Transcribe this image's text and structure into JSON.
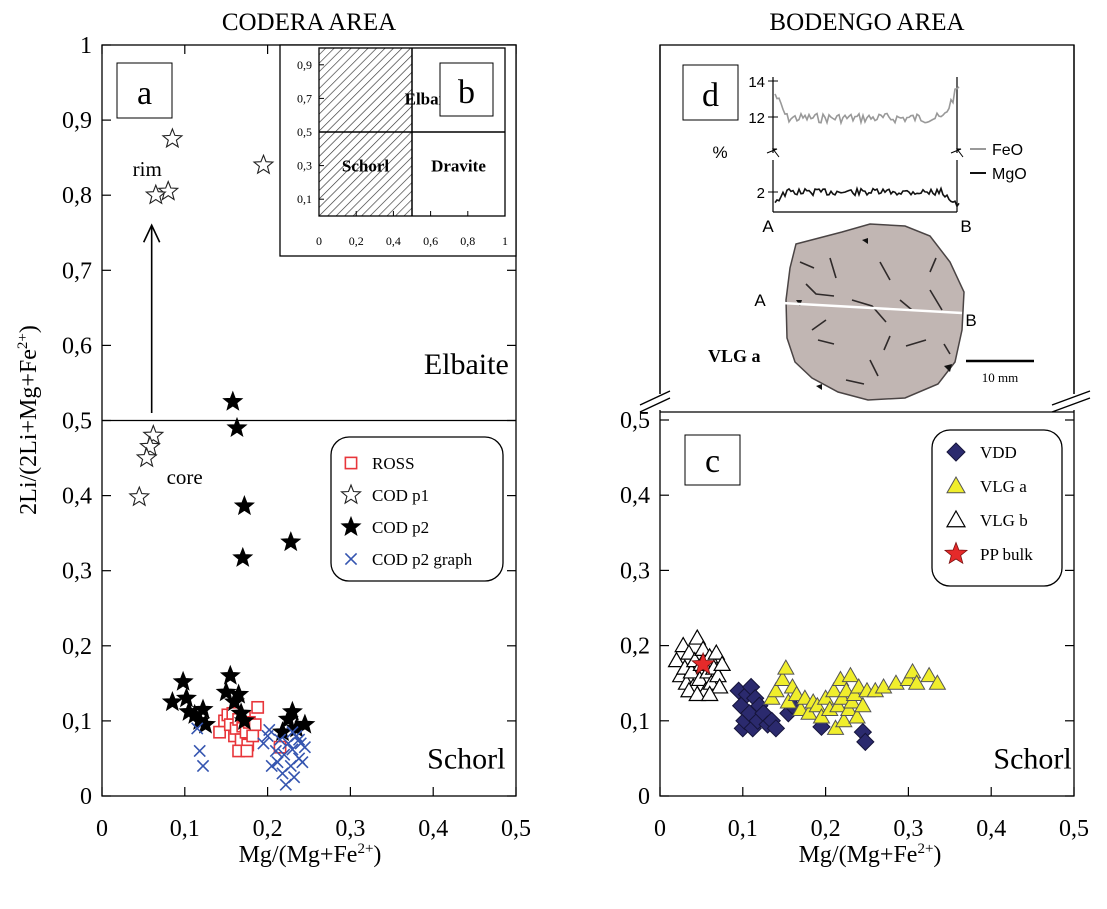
{
  "chart_data": [
    {
      "type": "scatter",
      "title": "CODERA AREA",
      "panel_label": "a",
      "xlabel_parts": [
        "Mg/(Mg+Fe",
        "2+",
        ")"
      ],
      "ylabel_parts": [
        "2Li/(2Li+Mg+Fe",
        "2+",
        ")"
      ],
      "xlim": [
        0,
        0.5
      ],
      "ylim": [
        0,
        1
      ],
      "x_ticks": [
        {
          "value": 0,
          "label": "0"
        },
        {
          "value": 0.1,
          "label": "0,1"
        },
        {
          "value": 0.2,
          "label": "0,2"
        },
        {
          "value": 0.3,
          "label": "0,3"
        },
        {
          "value": 0.4,
          "label": "0,4"
        },
        {
          "value": 0.5,
          "label": "0,5"
        }
      ],
      "y_ticks": [
        {
          "value": 0,
          "label": "0"
        },
        {
          "value": 0.1,
          "label": "0,1"
        },
        {
          "value": 0.2,
          "label": "0,2"
        },
        {
          "value": 0.3,
          "label": "0,3"
        },
        {
          "value": 0.4,
          "label": "0,4"
        },
        {
          "value": 0.5,
          "label": "0,5"
        },
        {
          "value": 0.6,
          "label": "0,6"
        },
        {
          "value": 0.7,
          "label": "0,7"
        },
        {
          "value": 0.8,
          "label": "0,8"
        },
        {
          "value": 0.9,
          "label": "0,9"
        },
        {
          "value": 1,
          "label": "1"
        }
      ],
      "boundary_y": 0.5,
      "region_labels": [
        {
          "text": "Elbaite",
          "x": 0.44,
          "y": 0.575
        },
        {
          "text": "Schorl",
          "x": 0.44,
          "y": 0.05
        }
      ],
      "annotations": [
        {
          "text": "rim",
          "x": 0.037,
          "y": 0.835
        },
        {
          "text": "core",
          "x": 0.078,
          "y": 0.425
        }
      ],
      "arrow": {
        "x": 0.06,
        "y_from": 0.51,
        "y_to": 0.76
      },
      "legend_position": "right, middle",
      "series": [
        {
          "name": "ROSS",
          "marker": "open-square",
          "color": "#e8363b",
          "points": [
            [
              0.142,
              0.085
            ],
            [
              0.148,
              0.1
            ],
            [
              0.152,
              0.108
            ],
            [
              0.155,
              0.095
            ],
            [
              0.158,
              0.11
            ],
            [
              0.16,
              0.08
            ],
            [
              0.162,
              0.09
            ],
            [
              0.165,
              0.102
            ],
            [
              0.168,
              0.075
            ],
            [
              0.17,
              0.093
            ],
            [
              0.172,
              0.105
            ],
            [
              0.174,
              0.085
            ],
            [
              0.176,
              0.068
            ],
            [
              0.178,
              0.098
            ],
            [
              0.182,
              0.08
            ],
            [
              0.185,
              0.095
            ],
            [
              0.188,
              0.118
            ],
            [
              0.165,
              0.06
            ],
            [
              0.175,
              0.06
            ],
            [
              0.215,
              0.065
            ]
          ]
        },
        {
          "name": "COD p1",
          "marker": "open-star",
          "color": "#222222",
          "points": [
            [
              0.085,
              0.875
            ],
            [
              0.195,
              0.84
            ],
            [
              0.08,
              0.805
            ],
            [
              0.065,
              0.8
            ],
            [
              0.062,
              0.48
            ],
            [
              0.058,
              0.465
            ],
            [
              0.054,
              0.45
            ],
            [
              0.045,
              0.398
            ]
          ]
        },
        {
          "name": "COD p2",
          "marker": "filled-star",
          "color": "#000000",
          "points": [
            [
              0.158,
              0.525
            ],
            [
              0.163,
              0.49
            ],
            [
              0.172,
              0.386
            ],
            [
              0.228,
              0.338
            ],
            [
              0.17,
              0.317
            ],
            [
              0.085,
              0.125
            ],
            [
              0.098,
              0.152
            ],
            [
              0.102,
              0.13
            ],
            [
              0.105,
              0.112
            ],
            [
              0.112,
              0.108
            ],
            [
              0.118,
              0.1
            ],
            [
              0.122,
              0.115
            ],
            [
              0.125,
              0.095
            ],
            [
              0.15,
              0.138
            ],
            [
              0.155,
              0.16
            ],
            [
              0.16,
              0.125
            ],
            [
              0.165,
              0.135
            ],
            [
              0.168,
              0.11
            ],
            [
              0.172,
              0.1
            ],
            [
              0.225,
              0.102
            ],
            [
              0.23,
              0.112
            ],
            [
              0.235,
              0.09
            ],
            [
              0.245,
              0.095
            ],
            [
              0.218,
              0.085
            ]
          ]
        },
        {
          "name": "COD p2 graph",
          "marker": "cross",
          "color": "#3555b0",
          "points": [
            [
              0.115,
              0.09
            ],
            [
              0.118,
              0.06
            ],
            [
              0.122,
              0.04
            ],
            [
              0.195,
              0.07
            ],
            [
              0.2,
              0.08
            ],
            [
              0.202,
              0.088
            ],
            [
              0.205,
              0.04
            ],
            [
              0.21,
              0.06
            ],
            [
              0.212,
              0.045
            ],
            [
              0.215,
              0.075
            ],
            [
              0.218,
              0.03
            ],
            [
              0.22,
              0.055
            ],
            [
              0.222,
              0.015
            ],
            [
              0.225,
              0.07
            ],
            [
              0.228,
              0.04
            ],
            [
              0.23,
              0.062
            ],
            [
              0.232,
              0.025
            ],
            [
              0.235,
              0.08
            ],
            [
              0.238,
              0.05
            ],
            [
              0.24,
              0.07
            ],
            [
              0.242,
              0.045
            ],
            [
              0.245,
              0.065
            ],
            [
              0.23,
              0.085
            ],
            [
              0.238,
              0.075
            ]
          ]
        }
      ]
    },
    {
      "type": "scatter",
      "title": "BODENGO AREA",
      "panel_label": "c",
      "xlabel_parts": [
        "Mg/(Mg+Fe",
        "2+",
        ")"
      ],
      "xlim": [
        0,
        0.5
      ],
      "ylim": [
        0,
        0.5
      ],
      "x_ticks": [
        {
          "value": 0,
          "label": "0"
        },
        {
          "value": 0.1,
          "label": "0,1"
        },
        {
          "value": 0.2,
          "label": "0,2"
        },
        {
          "value": 0.3,
          "label": "0,3"
        },
        {
          "value": 0.4,
          "label": "0,4"
        },
        {
          "value": 0.5,
          "label": "0,5"
        }
      ],
      "y_ticks": [
        {
          "value": 0,
          "label": "0"
        },
        {
          "value": 0.1,
          "label": "0,1"
        },
        {
          "value": 0.2,
          "label": "0,2"
        },
        {
          "value": 0.3,
          "label": "0,3"
        },
        {
          "value": 0.4,
          "label": "0,4"
        },
        {
          "value": 0.5,
          "label": "0,5"
        }
      ],
      "axis_break": true,
      "region_labels": [
        {
          "text": "Schorl",
          "x": 0.45,
          "y": 0.05
        }
      ],
      "legend_position": "top-right",
      "series": [
        {
          "name": "VDD",
          "marker": "filled-diamond",
          "color": "#2b2a6e",
          "points": [
            [
              0.095,
              0.14
            ],
            [
              0.098,
              0.12
            ],
            [
              0.1,
              0.09
            ],
            [
              0.102,
              0.1
            ],
            [
              0.105,
              0.135
            ],
            [
              0.108,
              0.11
            ],
            [
              0.11,
              0.145
            ],
            [
              0.112,
              0.09
            ],
            [
              0.115,
              0.13
            ],
            [
              0.118,
              0.1
            ],
            [
              0.12,
              0.12
            ],
            [
              0.125,
              0.11
            ],
            [
              0.13,
              0.095
            ],
            [
              0.135,
              0.1
            ],
            [
              0.14,
              0.09
            ],
            [
              0.155,
              0.11
            ],
            [
              0.16,
              0.12
            ],
            [
              0.195,
              0.092
            ],
            [
              0.245,
              0.085
            ],
            [
              0.248,
              0.072
            ]
          ]
        },
        {
          "name": "VLG a",
          "marker": "filled-triangle",
          "color": "#f0ee2c",
          "points": [
            [
              0.135,
              0.13
            ],
            [
              0.14,
              0.14
            ],
            [
              0.148,
              0.155
            ],
            [
              0.152,
              0.17
            ],
            [
              0.155,
              0.125
            ],
            [
              0.16,
              0.145
            ],
            [
              0.165,
              0.135
            ],
            [
              0.17,
              0.115
            ],
            [
              0.175,
              0.13
            ],
            [
              0.18,
              0.11
            ],
            [
              0.185,
              0.125
            ],
            [
              0.19,
              0.12
            ],
            [
              0.195,
              0.105
            ],
            [
              0.2,
              0.13
            ],
            [
              0.205,
              0.115
            ],
            [
              0.21,
              0.14
            ],
            [
              0.212,
              0.09
            ],
            [
              0.215,
              0.12
            ],
            [
              0.218,
              0.155
            ],
            [
              0.22,
              0.13
            ],
            [
              0.222,
              0.1
            ],
            [
              0.225,
              0.14
            ],
            [
              0.228,
              0.115
            ],
            [
              0.23,
              0.16
            ],
            [
              0.232,
              0.125
            ],
            [
              0.235,
              0.135
            ],
            [
              0.238,
              0.105
            ],
            [
              0.24,
              0.145
            ],
            [
              0.245,
              0.12
            ],
            [
              0.25,
              0.14
            ],
            [
              0.26,
              0.14
            ],
            [
              0.27,
              0.145
            ],
            [
              0.285,
              0.15
            ],
            [
              0.3,
              0.155
            ],
            [
              0.305,
              0.165
            ],
            [
              0.31,
              0.15
            ],
            [
              0.325,
              0.16
            ],
            [
              0.335,
              0.15
            ]
          ]
        },
        {
          "name": "VLG b",
          "marker": "open-triangle",
          "color": "#000000",
          "points": [
            [
              0.02,
              0.18
            ],
            [
              0.025,
              0.16
            ],
            [
              0.028,
              0.2
            ],
            [
              0.03,
              0.17
            ],
            [
              0.032,
              0.15
            ],
            [
              0.035,
              0.19
            ],
            [
              0.038,
              0.165
            ],
            [
              0.04,
              0.145
            ],
            [
              0.042,
              0.18
            ],
            [
              0.045,
              0.21
            ],
            [
              0.048,
              0.155
            ],
            [
              0.05,
              0.175
            ],
            [
              0.052,
              0.195
            ],
            [
              0.055,
              0.14
            ],
            [
              0.058,
              0.165
            ],
            [
              0.06,
              0.185
            ],
            [
              0.062,
              0.15
            ],
            [
              0.065,
              0.17
            ],
            [
              0.068,
              0.19
            ],
            [
              0.07,
              0.16
            ],
            [
              0.072,
              0.145
            ],
            [
              0.075,
              0.175
            ],
            [
              0.035,
              0.14
            ],
            [
              0.045,
              0.135
            ],
            [
              0.06,
              0.135
            ]
          ]
        },
        {
          "name": "PP bulk",
          "marker": "filled-star",
          "color": "#e52a2a",
          "points": [
            [
              0.052,
              0.175
            ]
          ]
        }
      ]
    }
  ],
  "inset_b": {
    "panel_label": "b",
    "xlim": [
      0,
      1
    ],
    "ylim": [
      0,
      1
    ],
    "x_ticks": [
      {
        "value": 0,
        "label": "0"
      },
      {
        "value": 0.2,
        "label": "0,2"
      },
      {
        "value": 0.4,
        "label": "0,4"
      },
      {
        "value": 0.6,
        "label": "0,6"
      },
      {
        "value": 0.8,
        "label": "0,8"
      },
      {
        "value": 1,
        "label": "1"
      }
    ],
    "y_ticks": [
      {
        "value": 0.1,
        "label": "0,1"
      },
      {
        "value": 0.3,
        "label": "0,3"
      },
      {
        "value": 0.5,
        "label": "0,5"
      },
      {
        "value": 0.7,
        "label": "0,7"
      },
      {
        "value": 0.9,
        "label": "0,9"
      }
    ],
    "hatched_region": {
      "x": [
        0,
        0.5
      ],
      "y": [
        0,
        1
      ]
    },
    "divider_x": 0.5,
    "divider_y": 0.5,
    "regions": [
      {
        "text": "Elbaite",
        "x": 0.6,
        "y": 0.7
      },
      {
        "text": "Schorl",
        "x": 0.25,
        "y": 0.3
      },
      {
        "text": "Dravite",
        "x": 0.75,
        "y": 0.3
      }
    ]
  },
  "inset_d": {
    "panel_label": "d",
    "profile_y_ticks": [
      {
        "value": 14,
        "label": "14"
      },
      {
        "value": 12,
        "label": "12"
      },
      {
        "value": 2,
        "label": "2"
      }
    ],
    "unit_label": "%",
    "point_a": "A",
    "point_b": "B",
    "legend": [
      {
        "name": "FeO",
        "color": "#999999"
      },
      {
        "name": "MgO",
        "color": "#111111"
      }
    ],
    "sample_label": "VLG a",
    "scale_bar_label": "10 mm"
  }
}
